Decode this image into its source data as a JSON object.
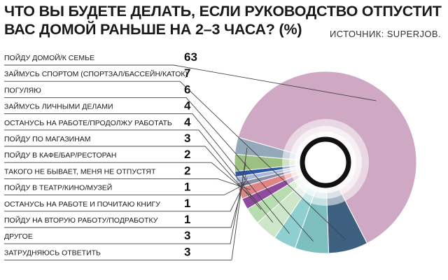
{
  "header": {
    "title_line1": "ЧТО ВЫ БУДЕТЕ ДЕЛАТЬ, ЕСЛИ РУКОВОДСТВО ОТПУСТИТ",
    "title_line2": "ВАС ДОМОЙ РАНЬШЕ НА 2–3 ЧАСА? (%)",
    "source": "ИСТОЧНИК: SUPERJOB."
  },
  "chart_data": {
    "type": "pie",
    "variant": "donut",
    "title": "ЧТО ВЫ БУДЕТЕ ДЕЛАТЬ, ЕСЛИ РУКОВОДСТВО ОТПУСТИТ ВАС ДОМОЙ РАНЬШЕ НА 2–3 ЧАСА? (%)",
    "legend": "left",
    "categories": [
      "ПОЙДУ ДОМОЙ/К СЕМЬЕ",
      "ЗАЙМУСЬ СПОРТОМ (СПОРТЗАЛ/БАССЕЙН/КАТОК)",
      "ПОГУЛЯЮ",
      "ЗАЙМУСЬ ЛИЧНЫМИ ДЕЛАМИ",
      "ОСТАНУСЬ НА РАБОТЕ/ПРОДОЛЖУ РАБОТАТЬ",
      "ПОЙДУ ПО МАГАЗИНАМ",
      "ПОЙДУ В КАФЕ/БАР/РЕСТОРАН",
      "ТАКОГО НЕ БЫВАЕТ, МЕНЯ НЕ ОТПУСТЯТ",
      "ПОЙДУ В ТЕАТР/КИНО/МУЗЕЙ",
      "ОСТАНУСЬ НА РАБОТЕ И ПОЧИТАЮ КНИГУ",
      "ПОЙДУ НА ВТОРУЮ РАБОТУ/ПОДРАБОТКУ",
      "ДРУГОЕ",
      "ЗАТРУДНЯЮСЬ ОТВЕТИТЬ"
    ],
    "values": [
      63,
      7,
      6,
      4,
      4,
      3,
      2,
      2,
      1,
      1,
      1,
      3,
      3
    ],
    "colors": [
      "#cfa9c4",
      "#3d5f80",
      "#7dbfbf",
      "#8fcfcf",
      "#cde6c9",
      "#b7dcb0",
      "#8e4a9c",
      "#e08585",
      "#8a8fa6",
      "#a8b9da",
      "#2e56a8",
      "#9cbf82",
      "#93a8b8"
    ]
  }
}
